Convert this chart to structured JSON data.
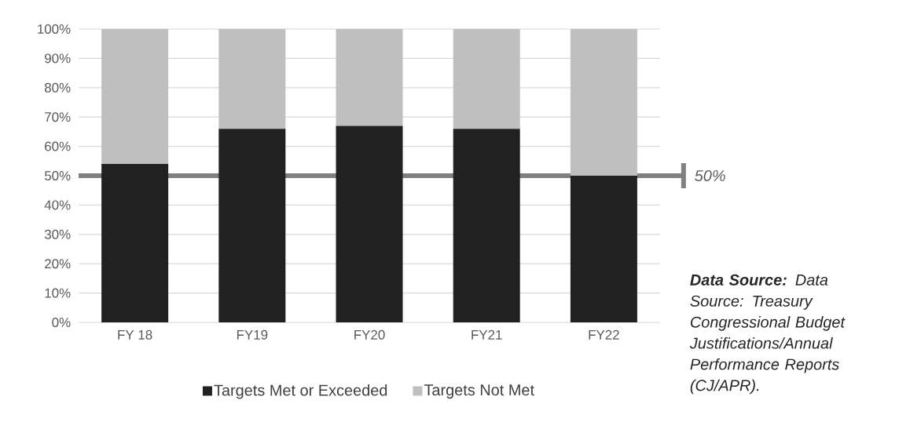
{
  "chart_data": {
    "type": "bar",
    "stacked": true,
    "categories": [
      "FY 18",
      "FY19",
      "FY20",
      "FY21",
      "FY22"
    ],
    "series": [
      {
        "name": "Targets Met or Exceeded",
        "color": "#212121",
        "values": [
          54,
          66,
          67,
          66,
          50
        ]
      },
      {
        "name": "Targets Not Met",
        "color": "#bfbfbf",
        "values": [
          46,
          34,
          33,
          34,
          50
        ]
      }
    ],
    "ylim": [
      0,
      100
    ],
    "yticks": [
      {
        "value": 0,
        "label": "0%"
      },
      {
        "value": 10,
        "label": "10%"
      },
      {
        "value": 20,
        "label": "20%"
      },
      {
        "value": 30,
        "label": "30%"
      },
      {
        "value": 40,
        "label": "40%"
      },
      {
        "value": 50,
        "label": "50%"
      },
      {
        "value": 60,
        "label": "60%"
      },
      {
        "value": 70,
        "label": "70%"
      },
      {
        "value": 80,
        "label": "80%"
      },
      {
        "value": 90,
        "label": "90%"
      },
      {
        "value": 100,
        "label": "100%"
      }
    ],
    "grid": "y",
    "legend": "bottom",
    "ref_lines": [
      {
        "axis": "y",
        "value": 50,
        "label": "50%",
        "color": "#808080"
      }
    ],
    "annotations": [
      "**Data Source:** Data Source: Treasury Congressional Budget Justifications/Annual Performance Reports (CJ/APR)."
    ]
  }
}
